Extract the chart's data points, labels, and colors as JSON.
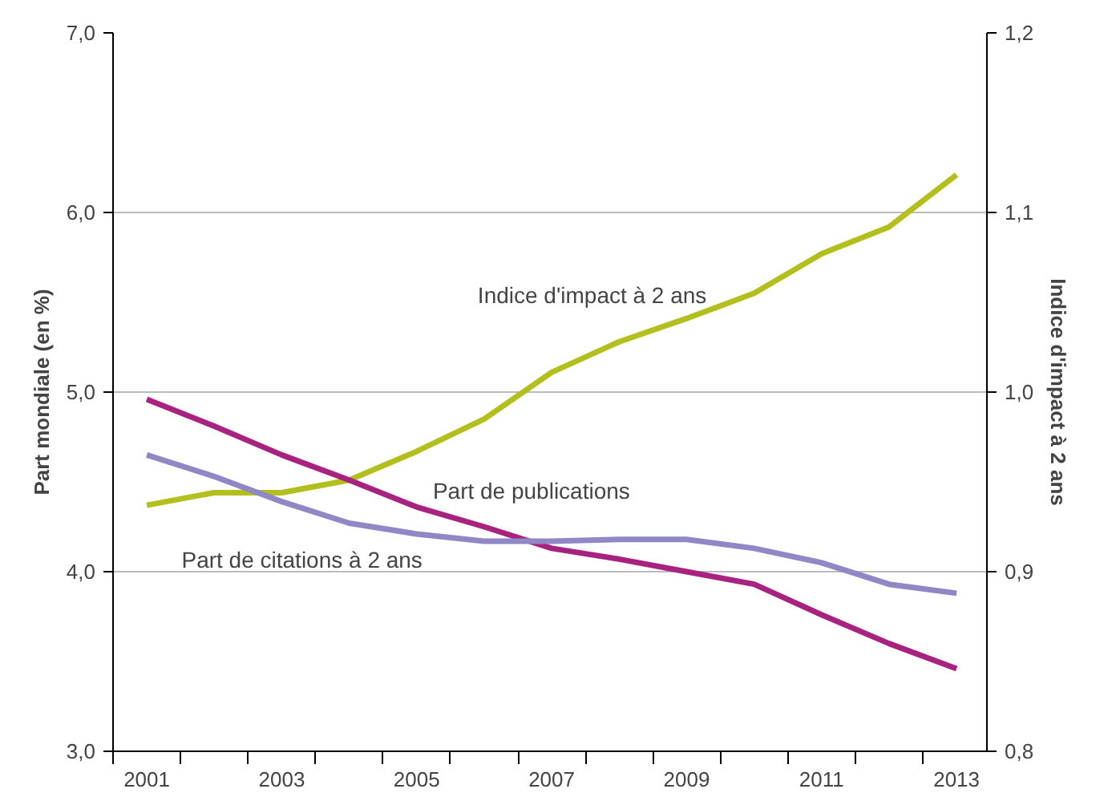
{
  "chart_data": {
    "type": "line",
    "ylabel": "Part mondiale (en %)",
    "y2label": "Indice d'impact à 2 ans",
    "x": [
      2001,
      2002,
      2003,
      2004,
      2005,
      2006,
      2007,
      2008,
      2009,
      2010,
      2011,
      2012,
      2013
    ],
    "xlim": [
      2000.5,
      2013.45
    ],
    "xticks": [
      2001,
      2003,
      2005,
      2007,
      2009,
      2011,
      2013
    ],
    "ylim": [
      3,
      7
    ],
    "yticks": [
      {
        "value": 3,
        "label": "3,0"
      },
      {
        "value": 4,
        "label": "4,0"
      },
      {
        "value": 5,
        "label": "5,0"
      },
      {
        "value": 6,
        "label": "6,0"
      },
      {
        "value": 7,
        "label": "7,0"
      }
    ],
    "y2lim": [
      0.8,
      1.2
    ],
    "y2ticks": [
      {
        "value": 0.8,
        "label": "0,8"
      },
      {
        "value": 0.9,
        "label": "0,9"
      },
      {
        "value": 1.0,
        "label": "1,0"
      },
      {
        "value": 1.1,
        "label": "1,1"
      },
      {
        "value": 1.2,
        "label": "1,2"
      }
    ],
    "grid": "y",
    "line_style": "solid",
    "series": [
      {
        "name": "Indice d'impact à 2 ans",
        "color": "#b2bf1c",
        "axis": "y2",
        "values": [
          0.937,
          0.944,
          0.944,
          0.951,
          0.967,
          0.985,
          1.011,
          1.028,
          1.041,
          1.055,
          1.077,
          1.092,
          1.121
        ]
      },
      {
        "name": "Part de publications",
        "color": "#a8237f",
        "values": [
          4.96,
          4.81,
          4.65,
          4.51,
          4.36,
          4.25,
          4.13,
          4.07,
          4.0,
          3.93,
          3.76,
          3.6,
          3.46
        ]
      },
      {
        "name": "Part de citations à 2 ans",
        "color": "#8f87c6",
        "values": [
          4.65,
          4.53,
          4.39,
          4.27,
          4.21,
          4.17,
          4.17,
          4.18,
          4.18,
          4.13,
          4.05,
          3.93,
          3.88
        ]
      }
    ]
  }
}
